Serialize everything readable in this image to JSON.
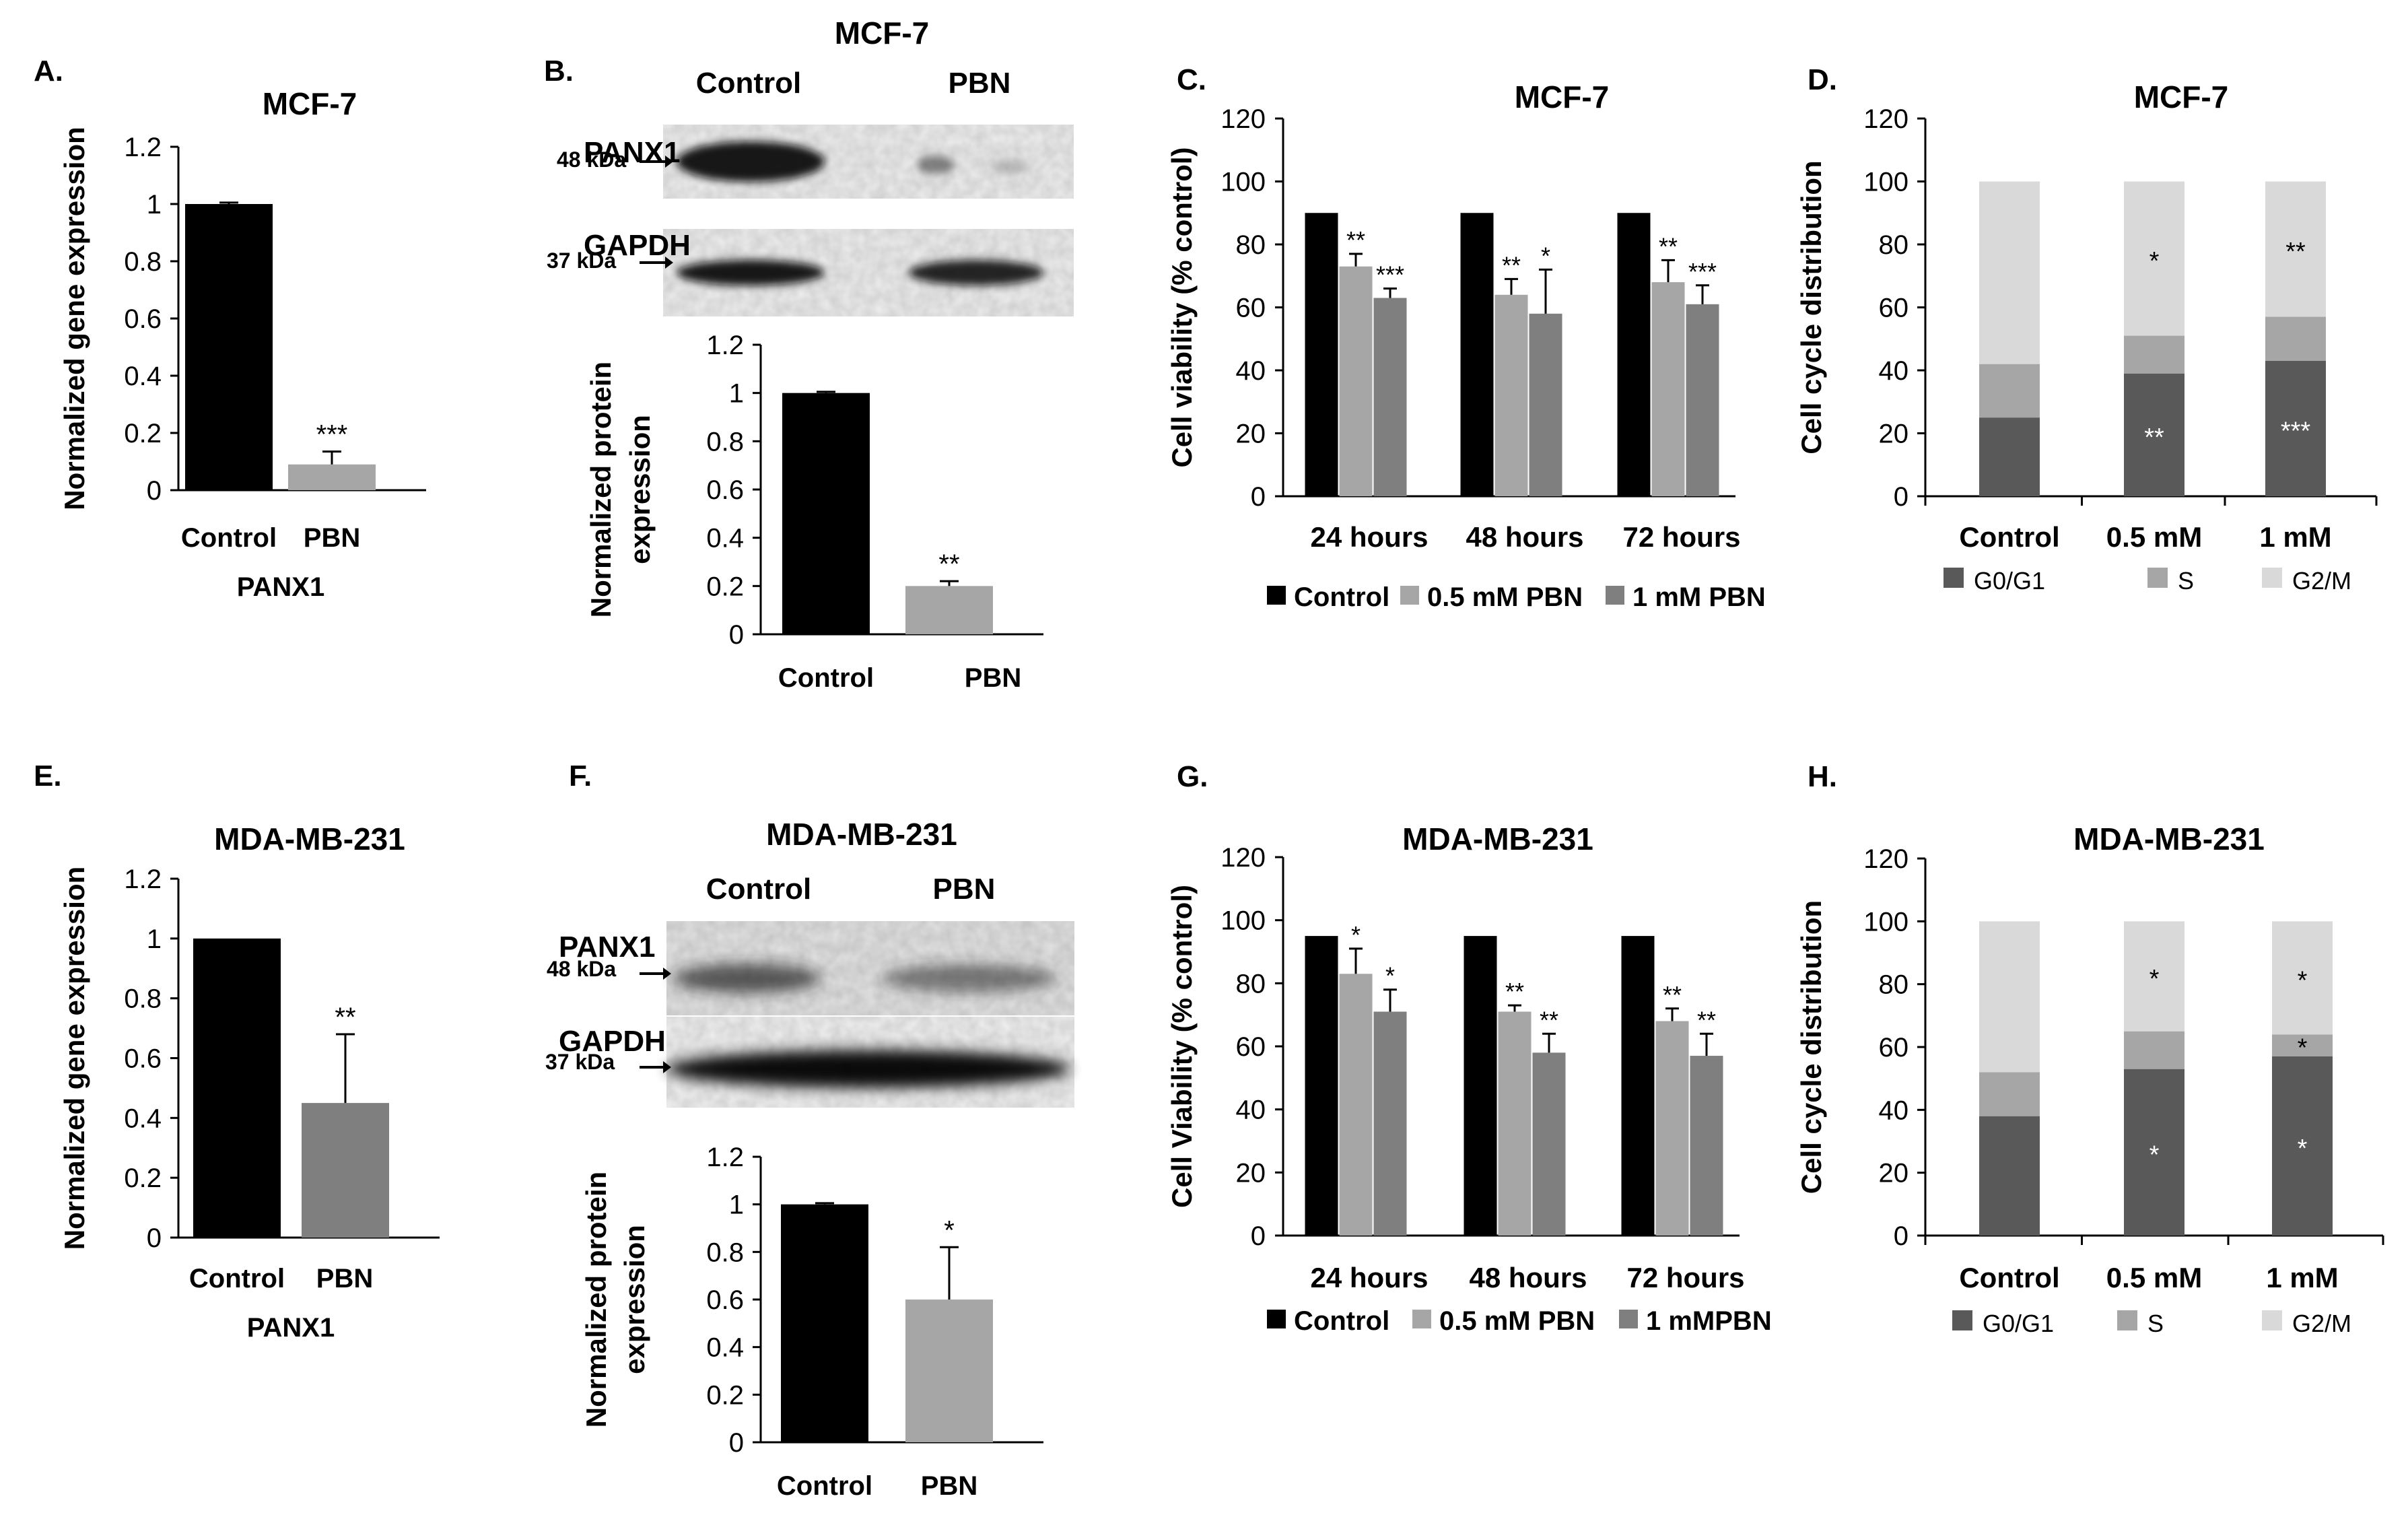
{
  "chart_data": [
    {
      "panel": "A.",
      "type": "bar",
      "title": "MCF-7",
      "ylabel": "Normalized gene expression",
      "xlabel": "PANX1",
      "ylim": [
        0,
        1.2
      ],
      "yticks": [
        "0",
        "0.2",
        "0.4",
        "0.6",
        "0.8",
        "1",
        "1.2"
      ],
      "categories": [
        "Control",
        "PBN"
      ],
      "values": [
        1.0,
        0.09
      ],
      "errors": [
        0.005,
        0.045
      ],
      "colors": [
        "#000000",
        "#a6a6a6"
      ],
      "annotations": [
        "",
        "***"
      ]
    },
    {
      "panel": "B.",
      "type": "bar",
      "title": "MCF-7",
      "ylabel": "Normalized protein expression",
      "ylabel_lines": [
        "Normalized protein",
        "expression"
      ],
      "ylim": [
        0,
        1.2
      ],
      "yticks": [
        "0",
        "0.2",
        "0.4",
        "0.6",
        "0.8",
        "1",
        "1.2"
      ],
      "categories": [
        "Control",
        "PBN"
      ],
      "values": [
        1.0,
        0.2
      ],
      "errors": [
        0.005,
        0.02
      ],
      "colors": [
        "#000000",
        "#a6a6a6"
      ],
      "annotations": [
        "",
        "**"
      ],
      "blot": {
        "lanes": [
          "Control",
          "PBN"
        ],
        "rows": [
          {
            "protein": "PANX1",
            "marker": "48 kDa",
            "intensity": [
              1.0,
              0.2
            ]
          },
          {
            "protein": "GAPDH",
            "marker": "37 kDa",
            "intensity": [
              1.0,
              0.9
            ]
          }
        ]
      }
    },
    {
      "panel": "C.",
      "type": "bar",
      "title": "MCF-7",
      "ylabel": "Cell viability (% control)",
      "ylim": [
        0,
        120
      ],
      "yticks": [
        "0",
        "20",
        "40",
        "60",
        "80",
        "100",
        "120"
      ],
      "categories": [
        "24 hours",
        "48 hours",
        "72 hours"
      ],
      "series": [
        {
          "name": "Control",
          "values": [
            90,
            90,
            90
          ],
          "errors": [
            0,
            0,
            0
          ],
          "color": "#000000",
          "annotations": [
            "",
            "",
            ""
          ]
        },
        {
          "name": "0.5 mM  PBN",
          "values": [
            73,
            64,
            68
          ],
          "errors": [
            4,
            5,
            7
          ],
          "color": "#a6a6a6",
          "annotations": [
            "**",
            "**",
            "**"
          ]
        },
        {
          "name": "1 mM PBN",
          "values": [
            63,
            58,
            61
          ],
          "errors": [
            3,
            14,
            6
          ],
          "color": "#7f7f7f",
          "annotations": [
            "***",
            "*",
            "***"
          ]
        }
      ],
      "legend_position": "bottom"
    },
    {
      "panel": "D.",
      "type": "bar",
      "stacked": true,
      "title": "MCF-7",
      "ylabel": "Cell cycle distribution",
      "ylim": [
        0,
        120
      ],
      "yticks": [
        "0",
        "20",
        "40",
        "60",
        "80",
        "100",
        "120"
      ],
      "categories": [
        "Control",
        "0.5 mM",
        "1 mM"
      ],
      "series": [
        {
          "name": "G0/G1",
          "values": [
            25,
            39,
            43
          ],
          "color": "#595959",
          "annotations": [
            "",
            "**",
            "***"
          ]
        },
        {
          "name": "S",
          "values": [
            17,
            12,
            14
          ],
          "color": "#a6a6a6",
          "annotations": [
            "",
            "",
            ""
          ]
        },
        {
          "name": "G2/M",
          "values": [
            58,
            49,
            43
          ],
          "color": "#d9d9d9",
          "annotations": [
            "",
            "*",
            "**"
          ]
        }
      ],
      "legend_position": "bottom"
    },
    {
      "panel": "E.",
      "type": "bar",
      "title": "MDA-MB-231",
      "ylabel": "Normalized gene expression",
      "xlabel": "PANX1",
      "ylim": [
        0,
        1.2
      ],
      "yticks": [
        "0",
        "0.2",
        "0.4",
        "0.6",
        "0.8",
        "1",
        "1.2"
      ],
      "categories": [
        "Control",
        "PBN"
      ],
      "values": [
        1.0,
        0.45
      ],
      "errors": [
        0,
        0.23
      ],
      "colors": [
        "#000000",
        "#7f7f7f"
      ],
      "annotations": [
        "",
        "**"
      ]
    },
    {
      "panel": "F.",
      "type": "bar",
      "title": "MDA-MB-231",
      "ylabel": "Normalized protein expression",
      "ylabel_lines": [
        "Normalized protein",
        "expression"
      ],
      "ylim": [
        0,
        1.2
      ],
      "yticks": [
        "0",
        "0.2",
        "0.4",
        "0.6",
        "0.8",
        "1",
        "1.2"
      ],
      "categories": [
        "Control",
        "PBN"
      ],
      "values": [
        1.0,
        0.6
      ],
      "errors": [
        0.005,
        0.22
      ],
      "colors": [
        "#000000",
        "#a6a6a6"
      ],
      "annotations": [
        "",
        "*"
      ],
      "blot": {
        "lanes": [
          "Control",
          "PBN"
        ],
        "rows": [
          {
            "protein": "PANX1",
            "marker": "48 kDa",
            "intensity": [
              0.7,
              0.5
            ]
          },
          {
            "protein": "GAPDH",
            "marker": "37 kDa",
            "intensity": [
              1.0,
              1.0
            ]
          }
        ]
      }
    },
    {
      "panel": "G.",
      "type": "bar",
      "title": "MDA-MB-231",
      "ylabel": "Cell Viability (% control)",
      "ylim": [
        0,
        120
      ],
      "yticks": [
        "0",
        "20",
        "40",
        "60",
        "80",
        "100",
        "120"
      ],
      "categories": [
        "24 hours",
        "48 hours",
        "72 hours"
      ],
      "series": [
        {
          "name": "Control",
          "values": [
            95,
            95,
            95
          ],
          "errors": [
            0,
            0,
            0
          ],
          "color": "#000000",
          "annotations": [
            "",
            "",
            ""
          ]
        },
        {
          "name": "0.5 mM  PBN",
          "values": [
            83,
            71,
            68
          ],
          "errors": [
            8,
            2,
            4
          ],
          "color": "#a6a6a6",
          "annotations": [
            "*",
            "**",
            "**"
          ]
        },
        {
          "name": "1 mMPBN",
          "values": [
            71,
            58,
            57
          ],
          "errors": [
            7,
            6,
            7
          ],
          "color": "#7f7f7f",
          "annotations": [
            "*",
            "**",
            "**"
          ]
        }
      ],
      "legend_position": "bottom"
    },
    {
      "panel": "H.",
      "type": "bar",
      "stacked": true,
      "title": "MDA-MB-231",
      "ylabel": "Cell cycle distribution",
      "ylim": [
        0,
        120
      ],
      "yticks": [
        "0",
        "20",
        "40",
        "60",
        "80",
        "100",
        "120"
      ],
      "categories": [
        "Control",
        "0.5 mM",
        "1 mM"
      ],
      "series": [
        {
          "name": "G0/G1",
          "values": [
            38,
            53,
            57
          ],
          "color": "#595959",
          "annotations": [
            "",
            "*",
            "*"
          ]
        },
        {
          "name": "S",
          "values": [
            14,
            12,
            7
          ],
          "color": "#a6a6a6",
          "annotations": [
            "",
            "",
            "*"
          ]
        },
        {
          "name": "G2/M",
          "values": [
            48,
            35,
            36
          ],
          "color": "#d9d9d9",
          "annotations": [
            "",
            "*",
            "*"
          ]
        }
      ],
      "legend_position": "bottom"
    }
  ]
}
